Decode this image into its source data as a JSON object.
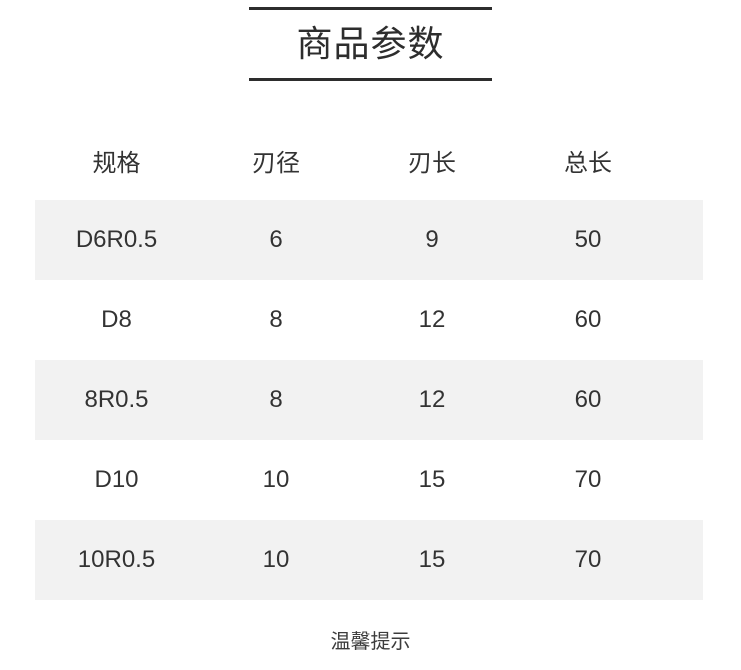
{
  "header": {
    "title": "商品参数"
  },
  "table": {
    "columns": [
      "规格",
      "刃径",
      "刃长",
      "总长"
    ],
    "rows": [
      {
        "values": [
          "D6R0.5",
          "6",
          "9",
          "50"
        ]
      },
      {
        "values": [
          "D8",
          "8",
          "12",
          "60"
        ]
      },
      {
        "values": [
          "8R0.5",
          "8",
          "12",
          "60"
        ]
      },
      {
        "values": [
          "D10",
          "10",
          "15",
          "70"
        ]
      },
      {
        "values": [
          "10R0.5",
          "10",
          "15",
          "70"
        ]
      }
    ]
  },
  "footer": {
    "note": "温馨提示"
  },
  "colors": {
    "stripe": "#f2f2f2",
    "text": "#333333",
    "title_rule": "#2d2d2d",
    "background": "#ffffff"
  }
}
